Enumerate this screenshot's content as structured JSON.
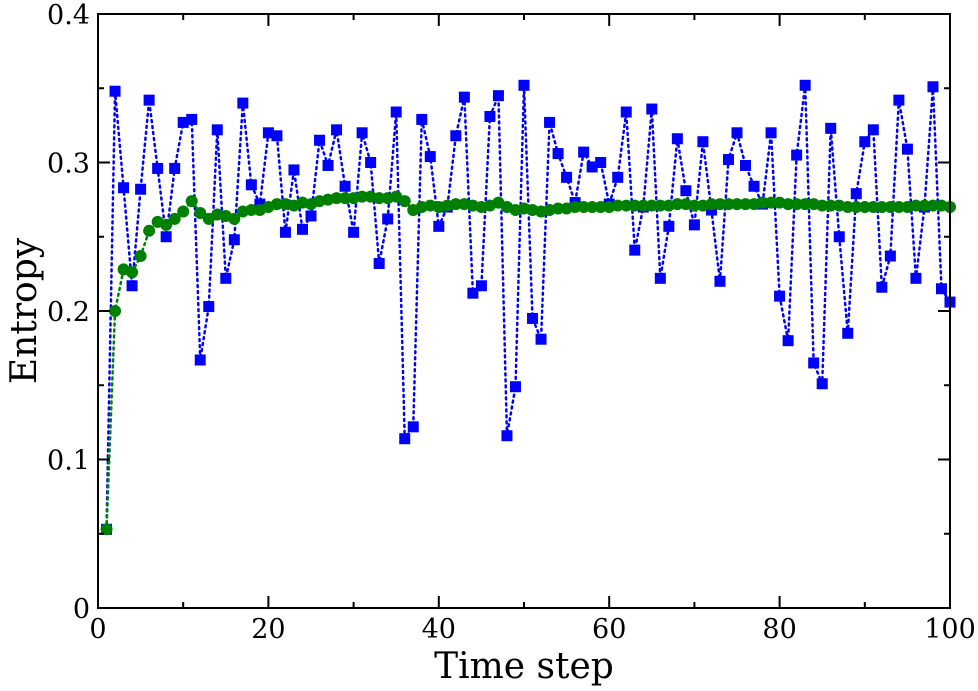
{
  "chart_data": {
    "type": "scatter",
    "title": "",
    "xlabel": "Time step",
    "ylabel": "Entropy",
    "xlim": [
      0,
      100
    ],
    "ylim": [
      0,
      0.4
    ],
    "x_ticks": [
      0,
      20,
      40,
      60,
      80,
      100
    ],
    "x_tick_labels": [
      "0",
      "20",
      "40",
      "60",
      "80",
      "100"
    ],
    "y_ticks": [
      0,
      0.1,
      0.2,
      0.3,
      0.4
    ],
    "y_tick_labels": [
      "0",
      "0.1",
      "0.2",
      "0.3",
      "0.4"
    ],
    "grid": false,
    "series": [
      {
        "name": "blue squares",
        "color": "#0000ff",
        "marker": "square",
        "line": "dotted",
        "x": [
          1,
          2,
          3,
          4,
          5,
          6,
          7,
          8,
          9,
          10,
          11,
          12,
          13,
          14,
          15,
          16,
          17,
          18,
          19,
          20,
          21,
          22,
          23,
          24,
          25,
          26,
          27,
          28,
          29,
          30,
          31,
          32,
          33,
          34,
          35,
          36,
          37,
          38,
          39,
          40,
          41,
          42,
          43,
          44,
          45,
          46,
          47,
          48,
          49,
          50,
          51,
          52,
          53,
          54,
          55,
          56,
          57,
          58,
          59,
          60,
          61,
          62,
          63,
          64,
          65,
          66,
          67,
          68,
          69,
          70,
          71,
          72,
          73,
          74,
          75,
          76,
          77,
          78,
          79,
          80,
          81,
          82,
          83,
          84,
          85,
          86,
          87,
          88,
          89,
          90,
          91,
          92,
          93,
          94,
          95,
          96,
          97,
          98,
          99,
          100
        ],
        "values": [
          0.053,
          0.348,
          0.283,
          0.217,
          0.282,
          0.342,
          0.296,
          0.25,
          0.296,
          0.327,
          0.329,
          0.167,
          0.203,
          0.322,
          0.222,
          0.248,
          0.34,
          0.285,
          0.272,
          0.32,
          0.318,
          0.253,
          0.295,
          0.255,
          0.264,
          0.315,
          0.298,
          0.322,
          0.284,
          0.253,
          0.32,
          0.3,
          0.232,
          0.262,
          0.334,
          0.114,
          0.122,
          0.329,
          0.304,
          0.257,
          0.27,
          0.318,
          0.344,
          0.212,
          0.217,
          0.331,
          0.345,
          0.116,
          0.149,
          0.352,
          0.195,
          0.181,
          0.327,
          0.306,
          0.29,
          0.273,
          0.307,
          0.297,
          0.3,
          0.272,
          0.29,
          0.334,
          0.241,
          0.27,
          0.336,
          0.222,
          0.257,
          0.316,
          0.281,
          0.258,
          0.314,
          0.268,
          0.22,
          0.302,
          0.32,
          0.298,
          0.284,
          0.272,
          0.32,
          0.21,
          0.18,
          0.305,
          0.352,
          0.165,
          0.151,
          0.323,
          0.25,
          0.185,
          0.279,
          0.314,
          0.322,
          0.216,
          0.237,
          0.342,
          0.309,
          0.222,
          0.27,
          0.351,
          0.215,
          0.206
        ]
      },
      {
        "name": "green circles",
        "color": "#008000",
        "marker": "circle",
        "line": "dotted",
        "x": [
          1,
          2,
          3,
          4,
          5,
          6,
          7,
          8,
          9,
          10,
          11,
          12,
          13,
          14,
          15,
          16,
          17,
          18,
          19,
          20,
          21,
          22,
          23,
          24,
          25,
          26,
          27,
          28,
          29,
          30,
          31,
          32,
          33,
          34,
          35,
          36,
          37,
          38,
          39,
          40,
          41,
          42,
          43,
          44,
          45,
          46,
          47,
          48,
          49,
          50,
          51,
          52,
          53,
          54,
          55,
          56,
          57,
          58,
          59,
          60,
          61,
          62,
          63,
          64,
          65,
          66,
          67,
          68,
          69,
          70,
          71,
          72,
          73,
          74,
          75,
          76,
          77,
          78,
          79,
          80,
          81,
          82,
          83,
          84,
          85,
          86,
          87,
          88,
          89,
          90,
          91,
          92,
          93,
          94,
          95,
          96,
          97,
          98,
          99,
          100
        ],
        "values": [
          0.053,
          0.2,
          0.228,
          0.226,
          0.237,
          0.254,
          0.26,
          0.258,
          0.262,
          0.267,
          0.274,
          0.266,
          0.262,
          0.265,
          0.264,
          0.262,
          0.267,
          0.268,
          0.268,
          0.27,
          0.272,
          0.272,
          0.271,
          0.273,
          0.272,
          0.274,
          0.275,
          0.276,
          0.276,
          0.276,
          0.277,
          0.277,
          0.276,
          0.276,
          0.277,
          0.274,
          0.268,
          0.27,
          0.271,
          0.27,
          0.271,
          0.272,
          0.272,
          0.271,
          0.27,
          0.271,
          0.273,
          0.27,
          0.268,
          0.269,
          0.268,
          0.267,
          0.268,
          0.269,
          0.269,
          0.27,
          0.27,
          0.27,
          0.27,
          0.27,
          0.271,
          0.271,
          0.271,
          0.271,
          0.271,
          0.271,
          0.271,
          0.272,
          0.272,
          0.271,
          0.271,
          0.272,
          0.272,
          0.272,
          0.272,
          0.272,
          0.272,
          0.273,
          0.273,
          0.273,
          0.272,
          0.272,
          0.272,
          0.272,
          0.271,
          0.271,
          0.271,
          0.27,
          0.27,
          0.27,
          0.27,
          0.27,
          0.27,
          0.27,
          0.27,
          0.271,
          0.271,
          0.271,
          0.271,
          0.27
        ]
      }
    ]
  }
}
